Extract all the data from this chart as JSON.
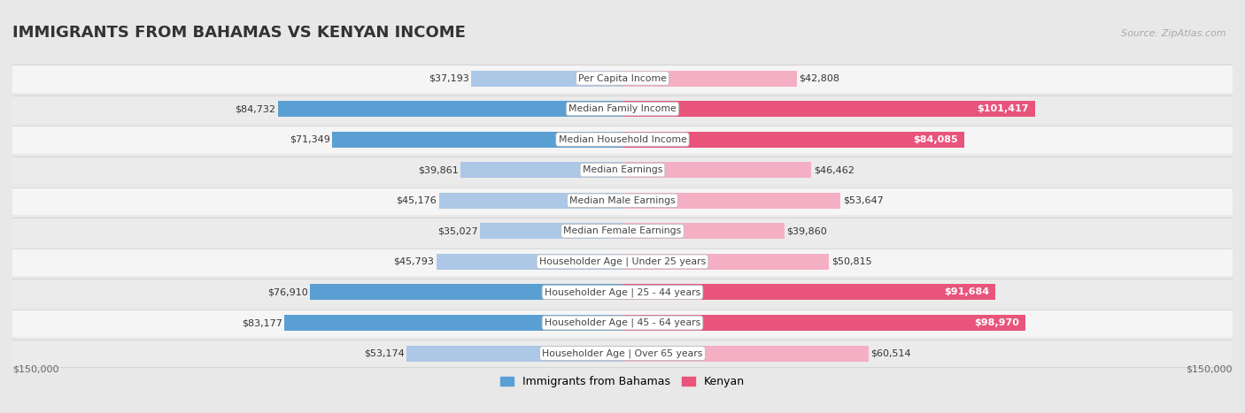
{
  "title": "IMMIGRANTS FROM BAHAMAS VS KENYAN INCOME",
  "source": "Source: ZipAtlas.com",
  "categories": [
    "Per Capita Income",
    "Median Family Income",
    "Median Household Income",
    "Median Earnings",
    "Median Male Earnings",
    "Median Female Earnings",
    "Householder Age | Under 25 years",
    "Householder Age | 25 - 44 years",
    "Householder Age | 45 - 64 years",
    "Householder Age | Over 65 years"
  ],
  "bahamas_values": [
    37193,
    84732,
    71349,
    39861,
    45176,
    35027,
    45793,
    76910,
    83177,
    53174
  ],
  "kenyan_values": [
    42808,
    101417,
    84085,
    46462,
    53647,
    39860,
    50815,
    91684,
    98970,
    60514
  ],
  "bahamas_labels": [
    "$37,193",
    "$84,732",
    "$71,349",
    "$39,861",
    "$45,176",
    "$35,027",
    "$45,793",
    "$76,910",
    "$83,177",
    "$53,174"
  ],
  "kenyan_labels": [
    "$42,808",
    "$101,417",
    "$84,085",
    "$46,462",
    "$53,647",
    "$39,860",
    "$50,815",
    "$91,684",
    "$98,970",
    "$60,514"
  ],
  "color_bahamas_light": "#adc8e6",
  "color_bahamas_dark": "#5a9fd4",
  "color_kenyan_light": "#f5afc4",
  "color_kenyan_dark": "#e8547a",
  "color_bahamas_legend": "#5a9fd4",
  "color_kenyan_legend": "#e8547a",
  "xmax": 150000,
  "legend_label_bahamas": "Immigrants from Bahamas",
  "legend_label_kenyan": "Kenyan",
  "xlabel_left": "$150,000",
  "xlabel_right": "$150,000",
  "fig_background": "#e8e8e8",
  "row_color_light": "#f5f5f5",
  "row_color_dark": "#ebebeb",
  "bahamas_dark_threshold": 60000,
  "kenyan_dark_threshold": 80000,
  "title_fontsize": 13,
  "label_fontsize": 8,
  "source_fontsize": 8
}
